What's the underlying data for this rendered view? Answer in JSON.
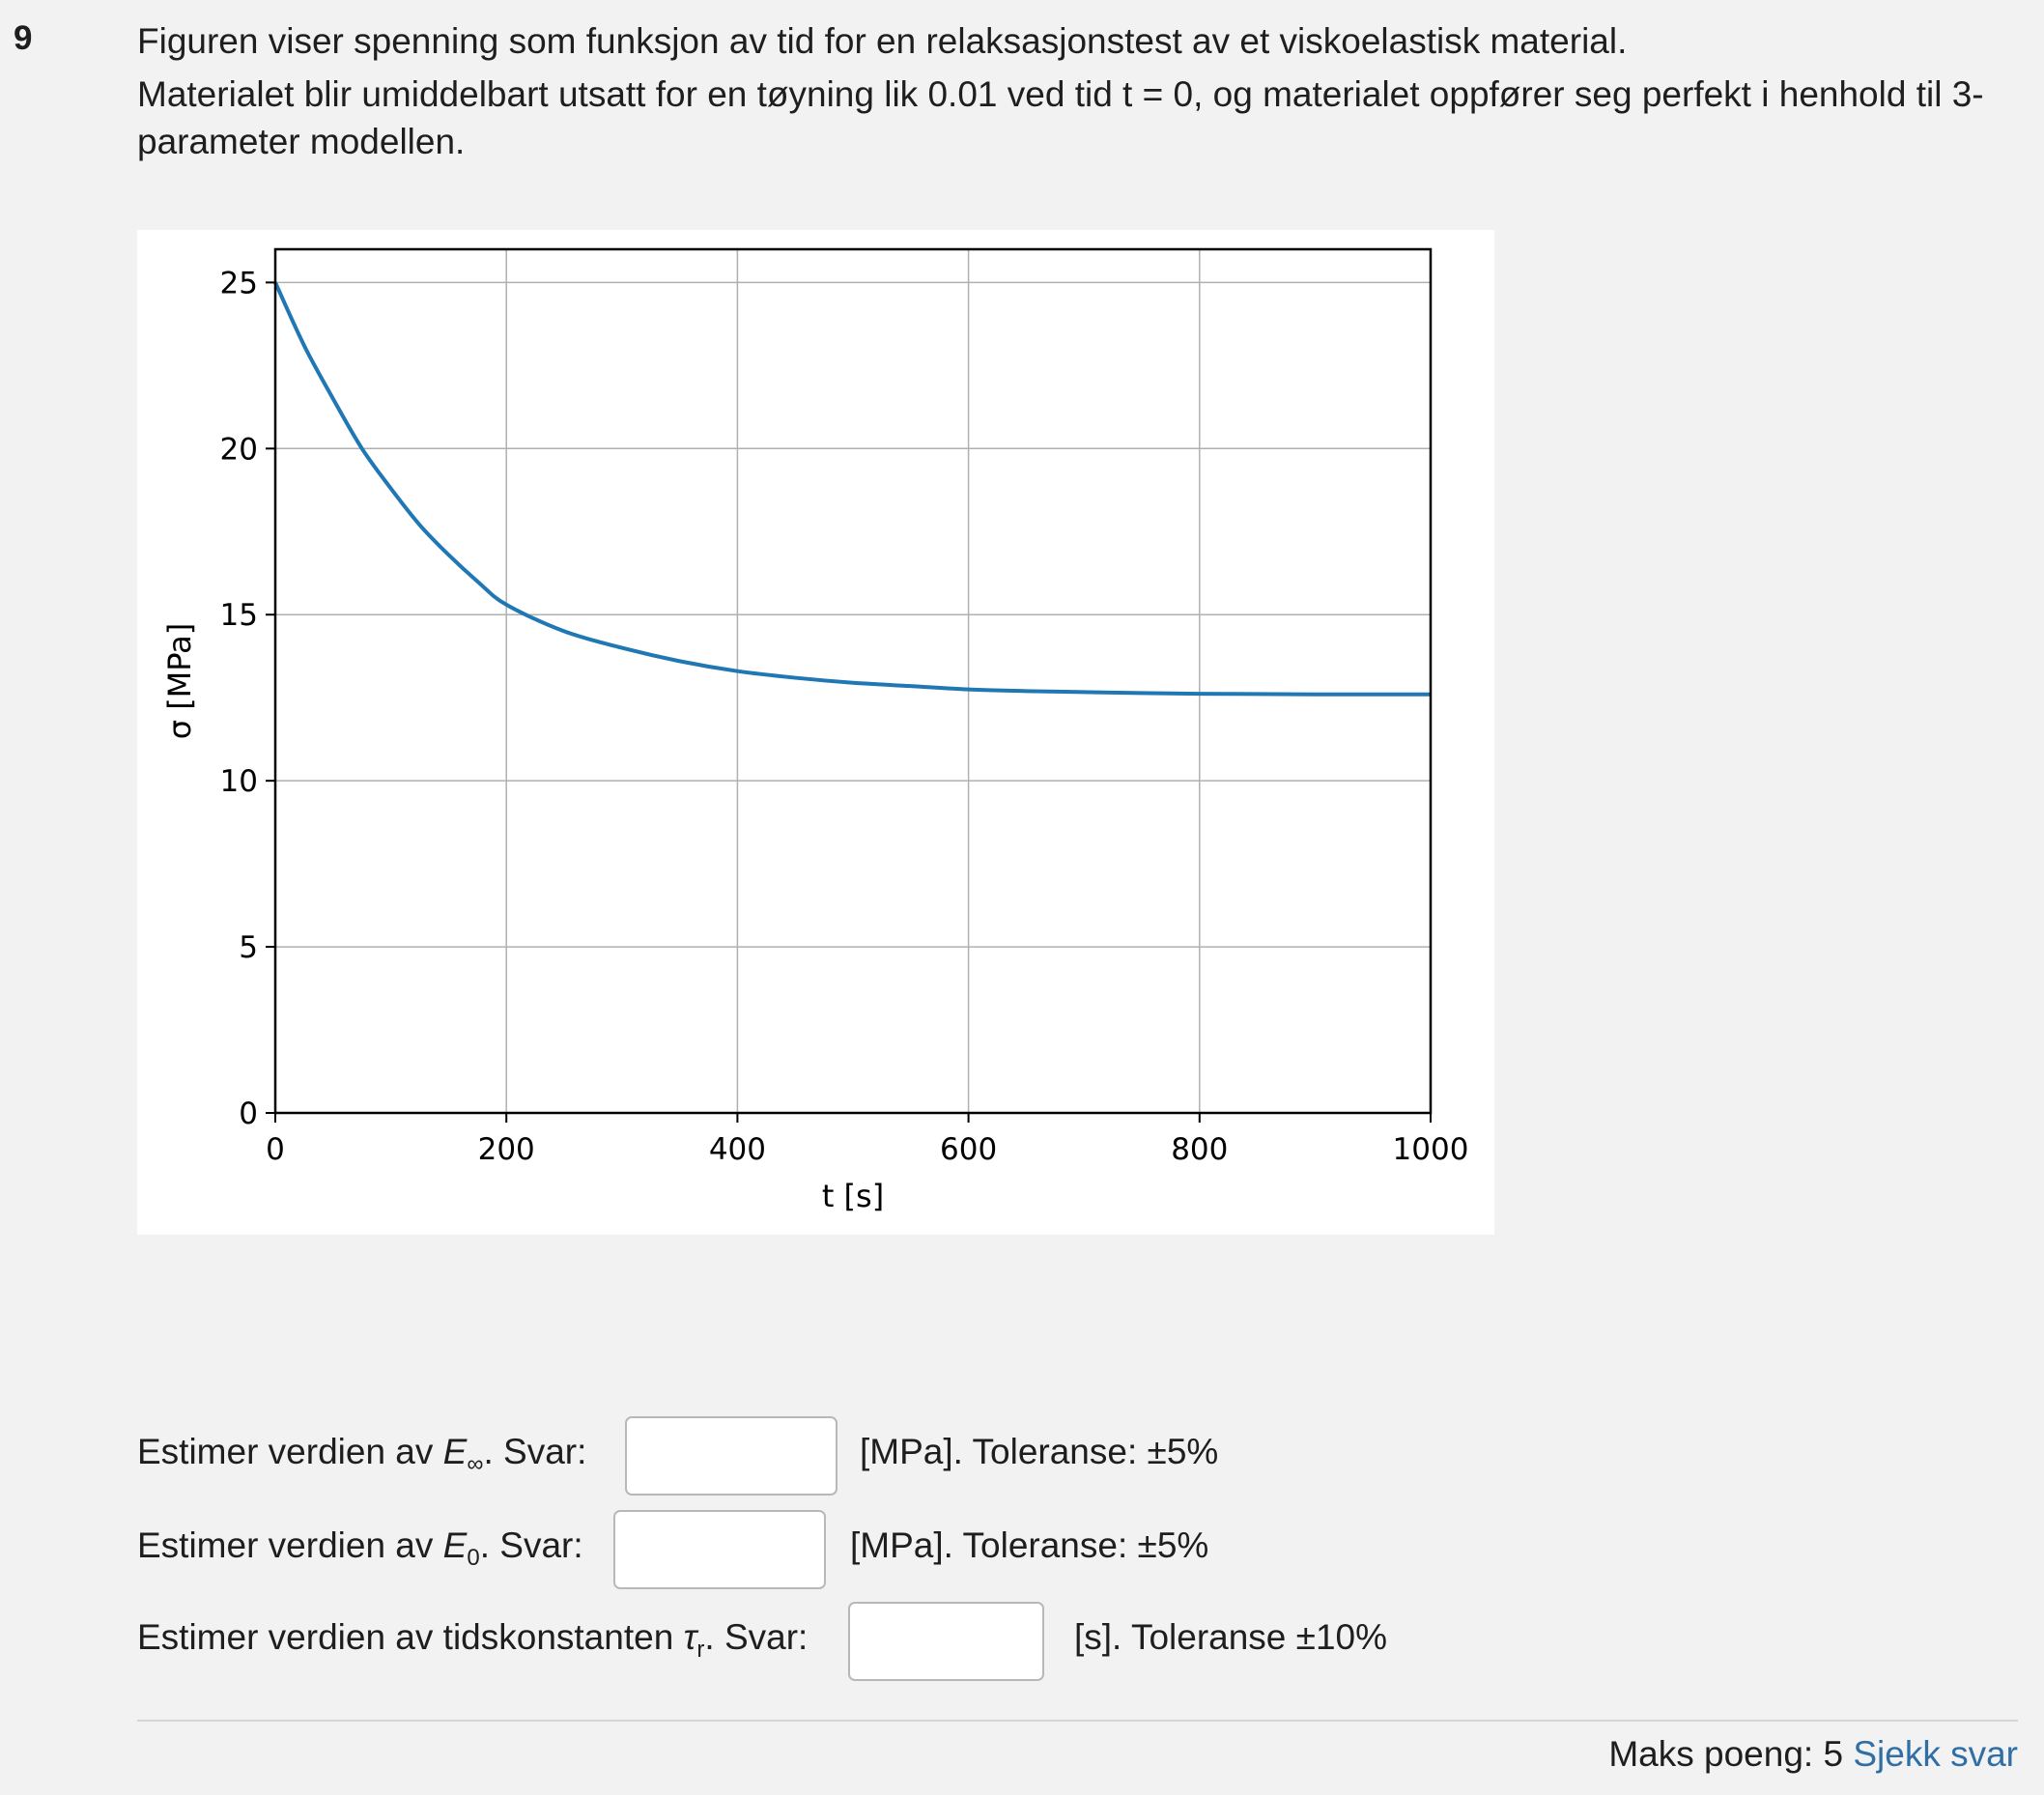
{
  "question": {
    "number": "9",
    "line1": "Figuren viser spenning som funksjon av tid for en relaksasjonstest av et viskoelastisk material.",
    "line2": "Materialet blir umiddelbart utsatt for en tøyning lik 0.01 ved tid t = 0, og materialet oppfører seg perfekt i henhold til 3-parameter modellen."
  },
  "chart_data": {
    "type": "line",
    "xlabel": "t [s]",
    "ylabel": "σ [MPa]",
    "xlim": [
      0,
      1000
    ],
    "ylim": [
      0,
      26
    ],
    "xticks": [
      0,
      200,
      400,
      600,
      800,
      1000
    ],
    "yticks": [
      0,
      5,
      10,
      15,
      20,
      25
    ],
    "grid": true,
    "color": "#1f77b4",
    "series": [
      {
        "x": [
          0,
          25,
          50,
          75,
          100,
          125,
          150,
          175,
          200,
          250,
          300,
          350,
          400,
          450,
          500,
          550,
          600,
          650,
          700,
          750,
          800,
          850,
          900,
          950,
          1000
        ],
        "y": [
          25.0,
          23.1,
          21.5,
          20.0,
          18.8,
          17.7,
          16.8,
          16.0,
          15.3,
          14.5,
          14.0,
          13.6,
          13.3,
          13.1,
          12.95,
          12.85,
          12.75,
          12.7,
          12.67,
          12.64,
          12.62,
          12.61,
          12.6,
          12.6,
          12.6
        ]
      }
    ]
  },
  "rows": [
    {
      "prefix": "Estimer verdien av ",
      "symbol": "E",
      "sub": "∞",
      "suffix": ". Svar:",
      "unit": "[MPa]. Toleranse: ±5%"
    },
    {
      "prefix": "Estimer verdien av ",
      "symbol": "E",
      "sub": "0",
      "suffix": ". Svar:",
      "unit": "[MPa]. Toleranse: ±5%"
    },
    {
      "prefix": "Estimer verdien av tidskonstanten ",
      "symbol": "τ",
      "sub": "r",
      "suffix": ". Svar:",
      "unit": "[s]. Toleranse ±10%"
    }
  ],
  "answers": [
    "",
    "",
    ""
  ],
  "footer": {
    "max_points": "Maks poeng: 5",
    "check_label": "Sjekk svar"
  }
}
